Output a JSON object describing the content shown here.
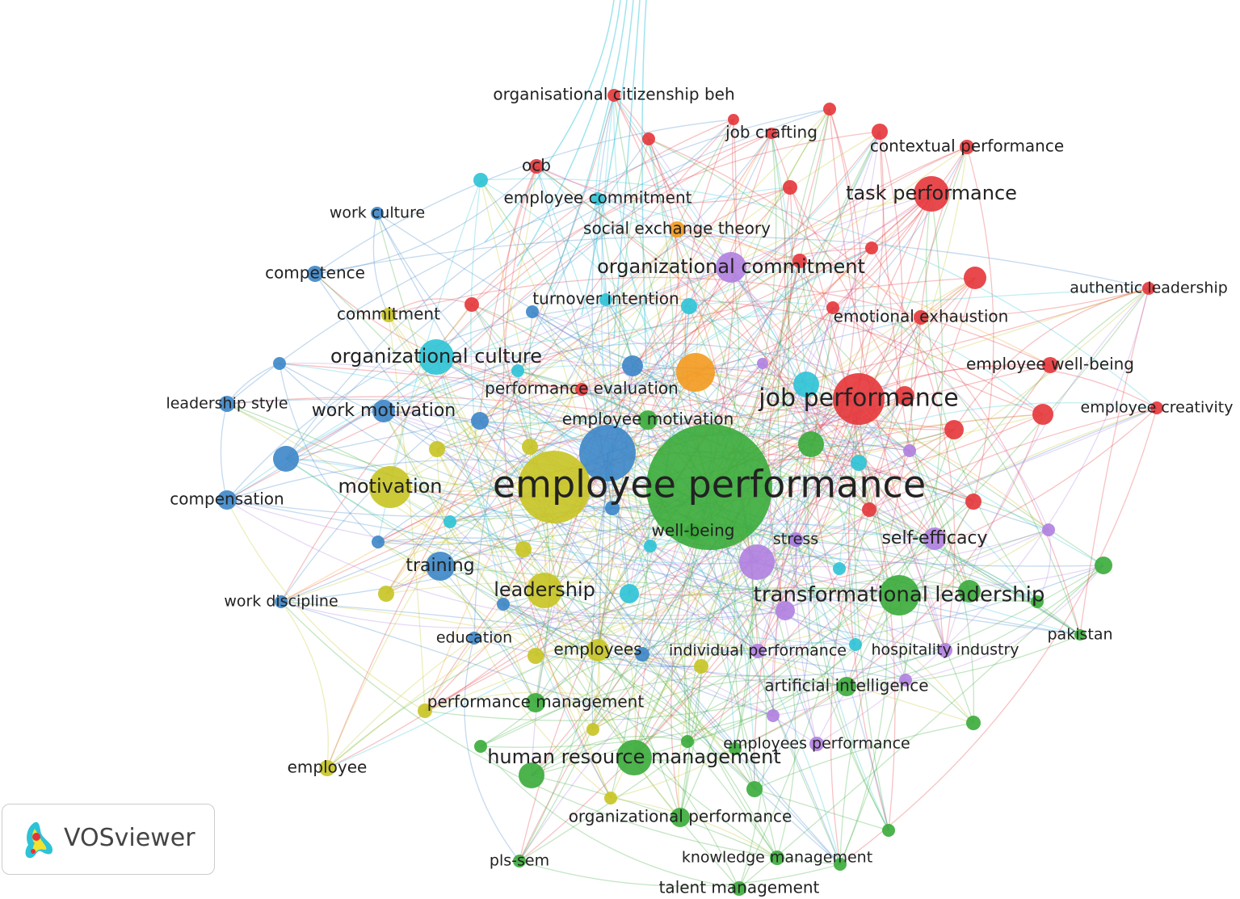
{
  "clusters": [
    {
      "color": "#e6353a",
      "labels": [
        "organisational citizenship beh",
        "job crafting",
        "contextual performance",
        "ocb",
        "task performance",
        "authentic leadership",
        "emotional exhaustion",
        "employee well-being",
        "job performance",
        "employee creativity",
        "performance evaluation"
      ]
    },
    {
      "color": "#3aab3a",
      "labels": [
        "employee performance",
        "employee motivation",
        "well-being",
        "transformational leadership",
        "pakistan",
        "artificial intelligence",
        "performance management",
        "human resource management",
        "organizational performance",
        "knowledge management",
        "talent management",
        "pls-sem"
      ]
    },
    {
      "color": "#c8c424",
      "labels": [
        "motivation",
        "commitment",
        "leadership",
        "employees",
        "employee"
      ]
    },
    {
      "color": "#3c86c8",
      "labels": [
        "work culture",
        "competence",
        "leadership style",
        "work motivation",
        "compensation",
        "training",
        "work discipline",
        "education"
      ]
    },
    {
      "color": "#2cc3d6",
      "labels": [
        "organizational culture",
        "employee commitment",
        "turnover intention"
      ]
    },
    {
      "color": "#f39a1e",
      "labels": [
        "social exchange theory"
      ]
    },
    {
      "color": "#b07fe0",
      "labels": [
        "organizational commitment",
        "stress",
        "self-efficacy",
        "hospitality industry",
        "individual performance",
        "employees performance"
      ]
    }
  ],
  "logo": "VOSviewer"
}
